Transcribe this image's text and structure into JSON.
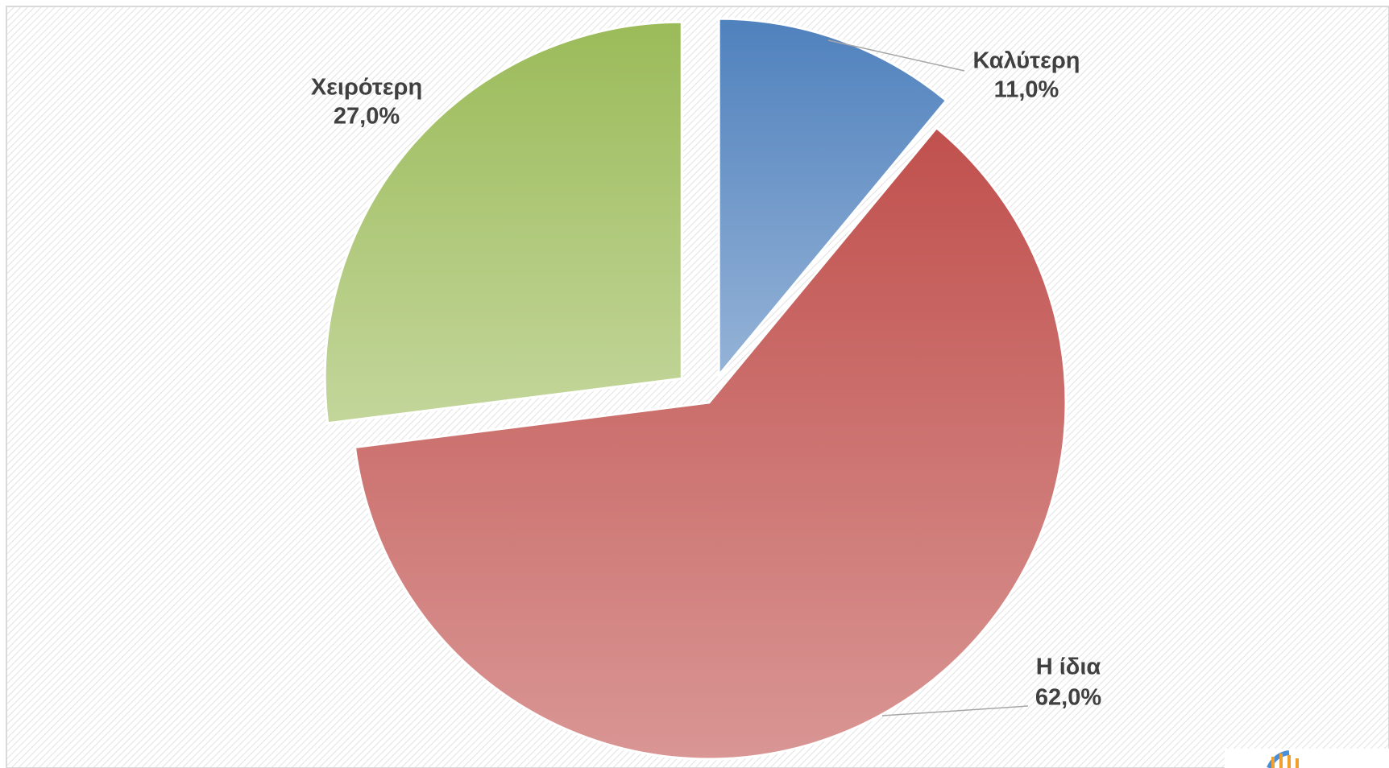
{
  "chart_data": {
    "type": "pie",
    "categories": [
      "Καλύτερη",
      "Η ίδια",
      "Χειρότερη"
    ],
    "values": [
      11,
      62,
      27
    ],
    "value_labels": [
      "11,0%",
      "62,0%",
      "27,0%"
    ],
    "colors": [
      "#4f81bd",
      "#c0504d",
      "#9bbb59"
    ]
  }
}
